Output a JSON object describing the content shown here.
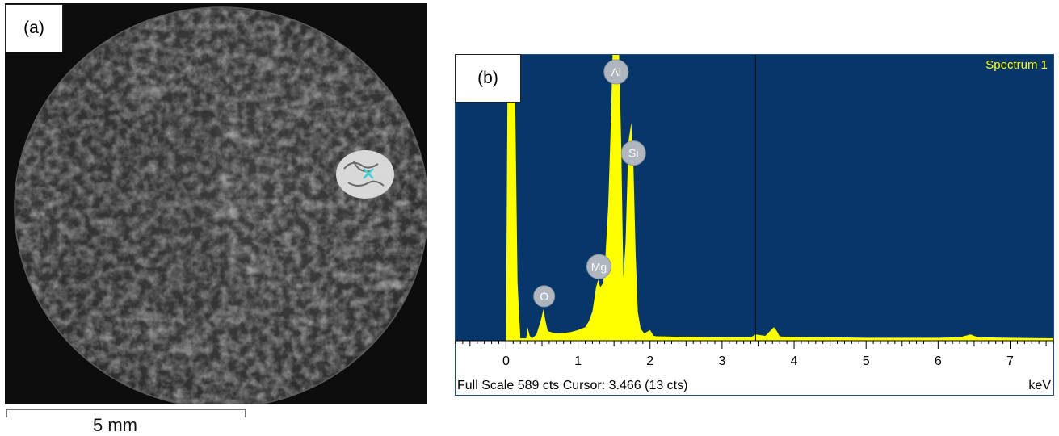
{
  "panel_a": {
    "label": "(a)",
    "scale_bar_label": "5 mm",
    "background_color": "#0d0d0d",
    "marker_color": "#3fd0d0"
  },
  "panel_b": {
    "label": "(b)"
  },
  "chart_data": {
    "type": "area",
    "title": "Spectrum 1",
    "xlabel": "keV",
    "xlim": [
      -0.7,
      7.6
    ],
    "ylim": [
      0,
      589
    ],
    "x_ticks": [
      "0",
      "1",
      "2",
      "3",
      "4",
      "5",
      "6",
      "7"
    ],
    "cursor": 3.466,
    "footer": "Full Scale 589 cts Cursor: 3.466  (13 cts)",
    "colors": {
      "background": "#06366a",
      "spectrum": "#ffff00",
      "title": "#ffff00",
      "axis_area": "#ffffff"
    },
    "series": [
      {
        "x": [
          0.0,
          0.02,
          0.05,
          0.08,
          0.12,
          0.16,
          0.2,
          0.24,
          0.28,
          0.3,
          0.33,
          0.36,
          0.42,
          0.48,
          0.52,
          0.55,
          0.58,
          0.62,
          0.7,
          0.8,
          0.9,
          1.0,
          1.05,
          1.1,
          1.15,
          1.2,
          1.25,
          1.28,
          1.31,
          1.35,
          1.38,
          1.42,
          1.45,
          1.48,
          1.5,
          1.53,
          1.57,
          1.6,
          1.63,
          1.66,
          1.7,
          1.74,
          1.77,
          1.8,
          1.83,
          1.87,
          1.92,
          2.0,
          2.05,
          2.1,
          2.2,
          2.4,
          2.6,
          2.8,
          3.0,
          3.2,
          3.4,
          3.466,
          3.6,
          3.68,
          3.72,
          3.76,
          3.8,
          3.9,
          4.2,
          4.5,
          5.0,
          5.5,
          6.0,
          6.3,
          6.45,
          6.55,
          7.0,
          7.6
        ],
        "y": [
          5,
          500,
          589,
          589,
          589,
          120,
          5,
          5,
          5,
          27,
          10,
          5,
          12,
          40,
          65,
          40,
          20,
          18,
          15,
          16,
          18,
          22,
          25,
          28,
          40,
          60,
          110,
          126,
          110,
          120,
          170,
          280,
          420,
          589,
          589,
          589,
          589,
          400,
          130,
          200,
          410,
          449,
          360,
          180,
          60,
          25,
          15,
          22,
          10,
          9,
          9,
          8,
          8,
          7,
          7,
          7,
          7,
          13,
          10,
          22,
          28,
          20,
          9,
          8,
          7,
          7,
          6,
          6,
          6,
          7,
          13,
          7,
          6,
          5
        ]
      }
    ],
    "peaks": [
      {
        "label": "O",
        "x": 0.53
      },
      {
        "label": "Mg",
        "x": 1.29
      },
      {
        "label": "Al",
        "x": 1.53
      },
      {
        "label": "Si",
        "x": 1.77
      }
    ]
  }
}
